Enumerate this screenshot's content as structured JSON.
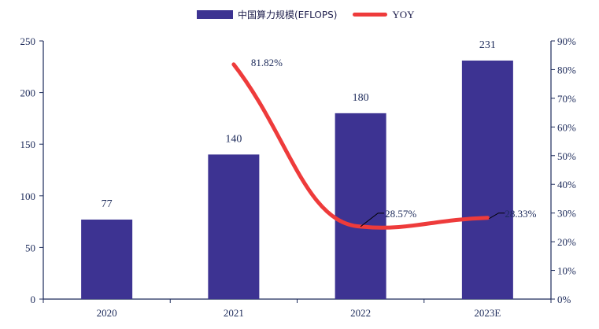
{
  "chart_data": {
    "type": "bar+line",
    "categories": [
      "2020",
      "2021",
      "2022",
      "2023E"
    ],
    "series": [
      {
        "name": "中国算力规模(EFLOPS)",
        "type": "bar",
        "axis": "left",
        "values": [
          77,
          140,
          180,
          231
        ],
        "color": "#3d3392",
        "data_labels": [
          "77",
          "140",
          "180",
          "231"
        ]
      },
      {
        "name": "YOY",
        "type": "line",
        "axis": "right",
        "x": [
          "2021",
          "2022",
          "2023E"
        ],
        "values": [
          81.82,
          28.57,
          28.33
        ],
        "color": "#ee3b3b",
        "data_labels": [
          "81.82%",
          "28.57%",
          "28.33%"
        ]
      }
    ],
    "y_left": {
      "ylim": [
        0,
        250
      ],
      "ticks": [
        "0",
        "50",
        "100",
        "150",
        "200",
        "250"
      ]
    },
    "y_right": {
      "ylim": [
        0,
        90
      ],
      "ticks": [
        "0%",
        "10%",
        "20%",
        "30%",
        "40%",
        "50%",
        "60%",
        "70%",
        "80%",
        "90%"
      ]
    },
    "legend": {
      "placement": "top-center",
      "labels": [
        "中国算力规模(EFLOPS)",
        "YOY"
      ]
    },
    "grid": false
  }
}
